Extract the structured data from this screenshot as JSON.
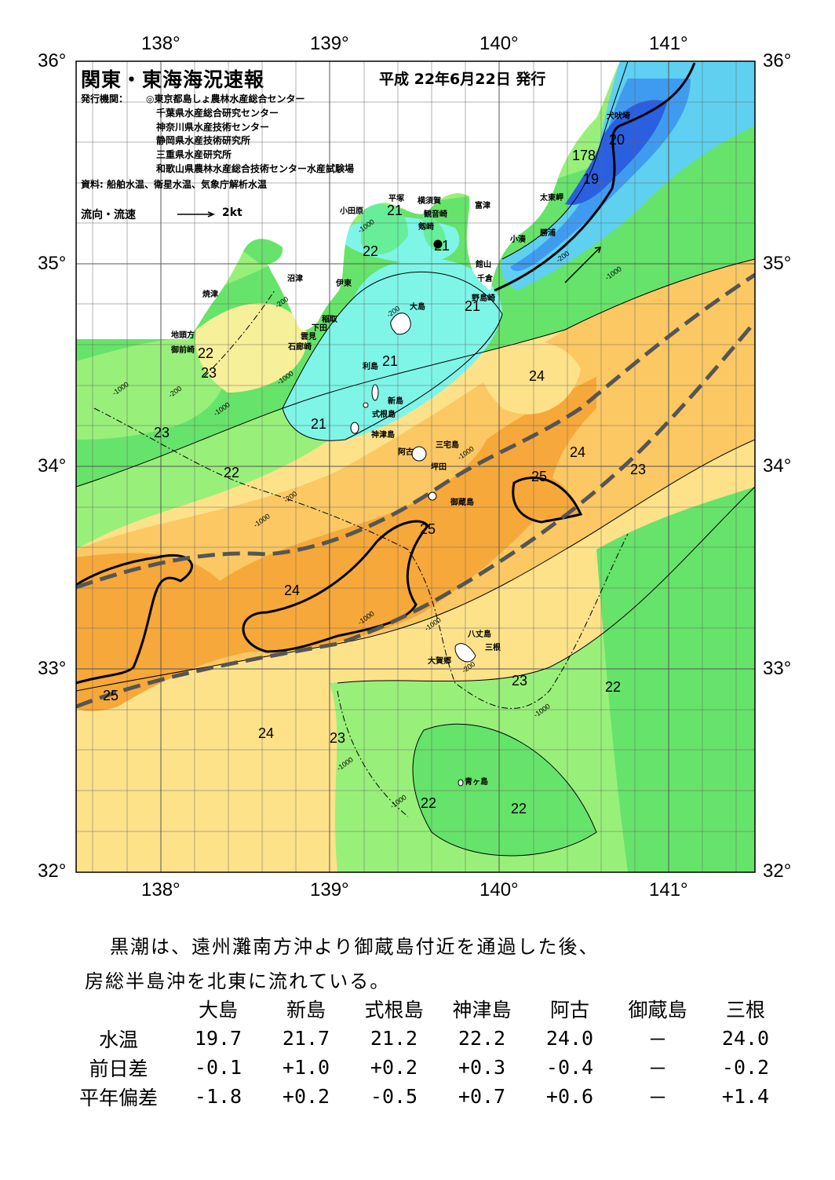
{
  "header": {
    "title": "関東・東海海況速報",
    "date": "平成 22年6月22日 発行",
    "issuer_label": "発行機関：",
    "issuers": [
      "◎東京都島しょ農林水産総合センター",
      "千葉県水産総合研究センター",
      "神奈川県水産技術センター",
      "静岡県水産技術研究所",
      "三重県水産研究所",
      "和歌山県農林水産総合技術センター水産試験場"
    ],
    "source": "資料: 船舶水温、衛星水温、気象庁解析水温",
    "legend_label": "流向・流速",
    "legend_unit": "2kt"
  },
  "axes": {
    "lon_top": [
      "138°",
      "139°",
      "140°",
      "141°"
    ],
    "lon_bottom": [
      "138°",
      "139°",
      "140°",
      "141°"
    ],
    "lat_left": [
      "36°",
      "35°",
      "34°",
      "33°",
      "32°"
    ],
    "lat_right": [
      "36°",
      "35°",
      "34°",
      "33°",
      "32°"
    ]
  },
  "places": [
    "犬吠埼",
    "太東岬",
    "勝浦",
    "小湊",
    "富津",
    "館山",
    "千倉",
    "野島崎",
    "横須賀",
    "観音崎",
    "剱崎",
    "平塚",
    "小田原",
    "沼津",
    "伊東",
    "焼津",
    "稲取",
    "下田",
    "雲見",
    "石廊崎",
    "地頭方",
    "御前崎",
    "大島",
    "利島",
    "新島",
    "式根島",
    "神津島",
    "三宅島",
    "阿古",
    "坪田",
    "御蔵島",
    "八丈島",
    "三根",
    "大賀郷",
    "青ヶ島"
  ],
  "isotherm_labels": [
    "20",
    "178",
    "19",
    "21",
    "21",
    "22",
    "21",
    "21",
    "22",
    "23",
    "21",
    "23",
    "22",
    "24",
    "24",
    "25",
    "23",
    "25",
    "24",
    "25",
    "23",
    "22",
    "24",
    "23",
    "22",
    "22"
  ],
  "depth_labels": [
    "-1000",
    "-1000",
    "-200",
    "-1000",
    "-200",
    "-1000",
    "-200",
    "-1000",
    "-200",
    "-1000",
    "-200",
    "-1000",
    "-1000",
    "-1000",
    "-1000",
    "-1000",
    "-200",
    "-1000"
  ],
  "summary": {
    "line1": "黒潮は、遠州灘南方沖より御蔵島付近を通過した後、",
    "line2": "房総半島沖を北東に流れている。"
  },
  "table": {
    "stations": [
      "大島",
      "新島",
      "式根島",
      "神津島",
      "阿古",
      "御蔵島",
      "三根"
    ],
    "rows": [
      {
        "label": "水温",
        "values": [
          "19.7",
          "21.7",
          "21.2",
          "22.2",
          "24.0",
          "－",
          "24.0"
        ]
      },
      {
        "label": "前日差",
        "values": [
          "-0.1",
          "+1.0",
          "+0.2",
          "+0.3",
          "-0.4",
          "－",
          "-0.2"
        ]
      },
      {
        "label": "平年偏差",
        "values": [
          "-1.8",
          "+0.2",
          "-0.5",
          "+0.7",
          "+0.6",
          "－",
          "+1.4"
        ]
      }
    ]
  },
  "colors": {
    "deep_blue": "#2a5fe0",
    "blue": "#3f9bf0",
    "light_blue": "#5fd0f0",
    "cyan": "#7ff5e8",
    "teal_green": "#66ee99",
    "green": "#66e36a",
    "light_green": "#98f07a",
    "yellow_green": "#c3f07a",
    "light_yellow": "#f7f09a",
    "yellow": "#fde28a",
    "light_orange": "#fbc864",
    "orange": "#f6a83a",
    "kuroshio_axis": "#555555",
    "land": "#ffffff"
  }
}
